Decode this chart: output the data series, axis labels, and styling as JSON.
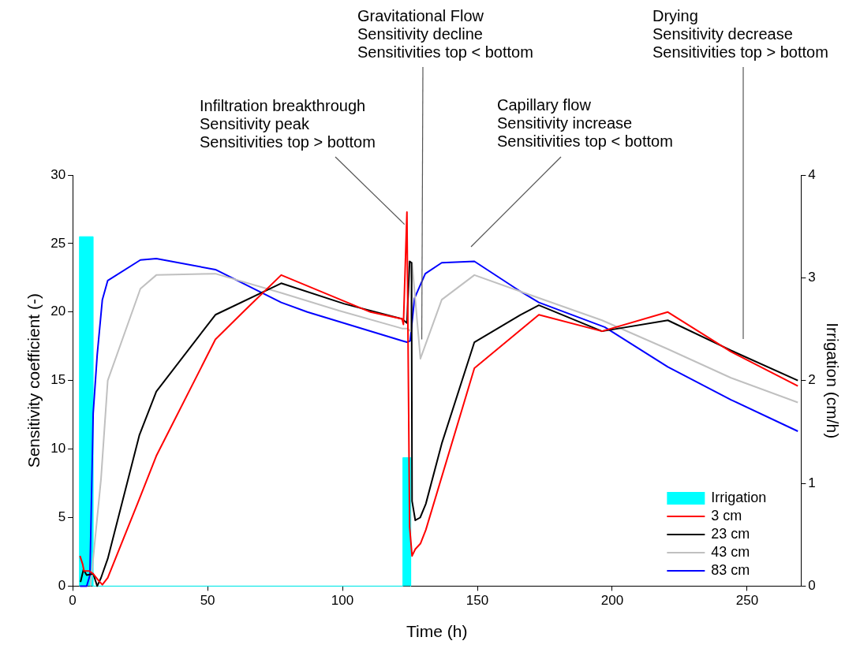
{
  "chart_data": {
    "type": "line",
    "xlabel": "Time (h)",
    "ylabel": "Sensitivity coefficient (-)",
    "y2label": "Irrigation (cm/h)",
    "xlim": [
      0,
      270
    ],
    "xticks": [
      0,
      50,
      100,
      150,
      200,
      250
    ],
    "ylim": [
      0,
      30
    ],
    "yticks": [
      0,
      5,
      10,
      15,
      20,
      25,
      30
    ],
    "y2lim": [
      0,
      4
    ],
    "y2ticks": [
      0,
      1,
      2,
      3,
      4
    ],
    "grid": false,
    "legend": "bottom right",
    "marker": "none",
    "line_style": "solid",
    "series": [
      {
        "name": "Irrigation",
        "type": "area",
        "axis": "y2",
        "color": "#00ffff",
        "x": [
          2.5,
          2.5,
          7.5,
          7.5,
          122.4,
          122.4,
          125.3,
          125.3
        ],
        "values": [
          0,
          3.4,
          3.4,
          0,
          0,
          1.25,
          1.25,
          0
        ]
      },
      {
        "name": "3 cm",
        "color": "#ff0000",
        "x": [
          2.7,
          3.7,
          4.2,
          6.1,
          7.6,
          9.6,
          11.0,
          13.0,
          24.2,
          31.0,
          52.9,
          63.7,
          77.3,
          110.4,
          122.1,
          122.6,
          123.9,
          124.9,
          125.8,
          127.0,
          128.9,
          130.9,
          148.9,
          166.0,
          172.8,
          196.2,
          220.6,
          244.0,
          268.8
        ],
        "values": [
          2.2,
          1.6,
          1.1,
          1.1,
          0.9,
          0.4,
          0.1,
          0.6,
          6.1,
          9.5,
          18.0,
          20.1,
          22.7,
          20.0,
          19.5,
          19.1,
          27.3,
          4.3,
          2.2,
          2.7,
          3.1,
          4.1,
          15.9,
          18.7,
          19.8,
          18.6,
          20.0,
          17.1,
          14.6
        ]
      },
      {
        "name": "23 cm",
        "color": "#000000",
        "x": [
          2.9,
          4.0,
          5.2,
          7.6,
          9.1,
          10.5,
          13.0,
          24.7,
          31.0,
          52.9,
          77.3,
          100.7,
          122.1,
          123.9,
          124.9,
          125.6,
          125.8,
          127.0,
          128.8,
          130.9,
          136.8,
          148.9,
          166.0,
          172.8,
          196.2,
          220.6,
          244.0,
          268.8
        ],
        "values": [
          0.3,
          1.2,
          0.8,
          0.9,
          0,
          0.6,
          2.0,
          11.0,
          14.2,
          19.8,
          22.1,
          20.6,
          19.5,
          19.2,
          23.7,
          23.6,
          6.2,
          4.8,
          5.0,
          6.0,
          10.4,
          17.8,
          19.8,
          20.5,
          18.6,
          19.4,
          17.2,
          15.0
        ]
      },
      {
        "name": "43 cm",
        "color": "#c0c0c0",
        "x": [
          6.6,
          10.5,
          13.0,
          25.1,
          31.0,
          52.9,
          77.3,
          98.7,
          122.1,
          123.9,
          125.3,
          125.8,
          128.9,
          136.8,
          148.9,
          166.0,
          196.2,
          220.6,
          244.0,
          268.8
        ],
        "values": [
          0,
          7.8,
          15.0,
          21.7,
          22.7,
          22.8,
          21.4,
          20.1,
          18.8,
          18.8,
          18.6,
          23.6,
          16.6,
          20.9,
          22.7,
          21.5,
          19.4,
          17.3,
          15.2,
          13.4
        ]
      },
      {
        "name": "83 cm",
        "color": "#0000ff",
        "x": [
          2.7,
          5.2,
          6.4,
          7.6,
          9.1,
          11.0,
          13.0,
          25.1,
          31.0,
          52.9,
          77.3,
          87.0,
          122.1,
          123.9,
          125.1,
          126.7,
          130.7,
          136.8,
          148.9,
          166.0,
          172.8,
          197.2,
          220.6,
          244.0,
          268.8
        ],
        "values": [
          0,
          0,
          0.8,
          12.6,
          16.9,
          20.9,
          22.3,
          23.8,
          23.9,
          23.1,
          20.7,
          20.0,
          17.9,
          17.8,
          17.9,
          21.0,
          22.8,
          23.6,
          23.7,
          21.5,
          20.7,
          18.9,
          16.0,
          13.6,
          11.3
        ]
      }
    ],
    "annotations": [
      {
        "text": "Infiltration breakthrough\nSensitivity peak\nSensitivities top > bottom",
        "x": 123,
        "y": 26.4
      },
      {
        "text": "Gravitational Flow\nSensitivity decline\nSensitivities top < bottom",
        "x": 129.4,
        "y": 18
      },
      "Capillary flow\nSensitivity increase\nSensitivities top < bottom",
      "Drying\nSensitivity decrease\nSensitivities top > bottom"
    ]
  }
}
